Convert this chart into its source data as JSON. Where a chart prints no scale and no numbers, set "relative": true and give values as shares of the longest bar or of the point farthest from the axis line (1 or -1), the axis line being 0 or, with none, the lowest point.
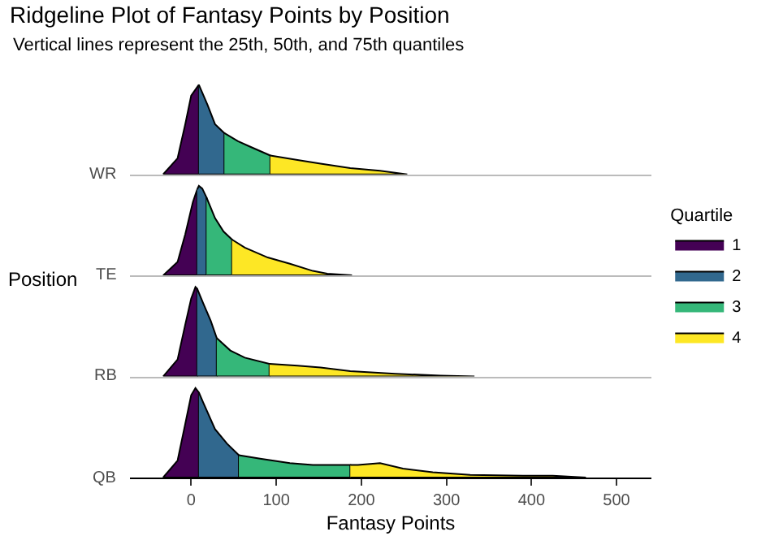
{
  "chart_data": [
    {
      "type": "area",
      "relative": true,
      "title": "Ridgeline Plot of Fantasy Points by Position",
      "subtitle": "Vertical lines represent the 25th, 50th, and 75th quantiles",
      "ylabel": "WR",
      "legend_title": "Quartile",
      "legend": "right",
      "annotations": [
        "Position"
      ],
      "xlim": [
        -72,
        541
      ],
      "tick_labels": false,
      "series": [
        {
          "name": "1",
          "color": "#440154",
          "x": [
            -33,
            -16,
            -7,
            0,
            9
          ],
          "values": [
            0,
            0.18,
            0.56,
            0.88,
            1
          ]
        },
        {
          "name": "2",
          "color": "#31688e",
          "x": [
            9,
            19,
            28,
            39
          ],
          "values": [
            1,
            0.78,
            0.56,
            0.46
          ]
        },
        {
          "name": "3",
          "color": "#35b779",
          "x": [
            39,
            55,
            69,
            93
          ],
          "values": [
            0.46,
            0.37,
            0.31,
            0.21
          ]
        },
        {
          "name": "4",
          "color": "#fde725",
          "x": [
            93,
            125,
            152,
            187,
            222,
            254
          ],
          "values": [
            0.21,
            0.16,
            0.12,
            0.07,
            0.04,
            0
          ]
        }
      ]
    },
    {
      "type": "area",
      "relative": true,
      "ylabel": "TE",
      "xlim": [
        -72,
        541
      ],
      "tick_labels": false,
      "series": [
        {
          "color": "#440154",
          "x": [
            -33,
            -16,
            -7,
            2,
            7
          ],
          "values": [
            0,
            0.15,
            0.46,
            0.82,
            0.96
          ]
        },
        {
          "color": "#31688e",
          "x": [
            7,
            9,
            13,
            18
          ],
          "values": [
            0.96,
            1,
            0.97,
            0.87
          ]
        },
        {
          "color": "#35b779",
          "x": [
            18,
            28,
            38,
            48
          ],
          "values": [
            0.87,
            0.64,
            0.49,
            0.4
          ]
        },
        {
          "color": "#fde725",
          "x": [
            48,
            63,
            90,
            116,
            143,
            160,
            189
          ],
          "values": [
            0.4,
            0.31,
            0.2,
            0.13,
            0.05,
            0.02,
            0
          ]
        }
      ]
    },
    {
      "type": "area",
      "relative": true,
      "ylabel": "RB",
      "xlim": [
        -72,
        541
      ],
      "tick_labels": false,
      "series": [
        {
          "color": "#440154",
          "x": [
            -33,
            -16,
            -7,
            0,
            5,
            7
          ],
          "values": [
            0,
            0.19,
            0.58,
            0.87,
            1,
            0.98
          ]
        },
        {
          "color": "#31688e",
          "x": [
            7,
            14,
            23,
            30
          ],
          "values": [
            0.98,
            0.82,
            0.62,
            0.43
          ]
        },
        {
          "color": "#35b779",
          "x": [
            30,
            46,
            63,
            92
          ],
          "values": [
            0.43,
            0.29,
            0.21,
            0.14
          ]
        },
        {
          "color": "#fde725",
          "x": [
            92,
            125,
            152,
            187,
            240,
            293,
            333
          ],
          "values": [
            0.14,
            0.12,
            0.1,
            0.06,
            0.03,
            0.01,
            0
          ]
        }
      ]
    },
    {
      "type": "area",
      "relative": true,
      "ylabel": "QB",
      "xlabel": "Fantasy Points",
      "xlim": [
        -72,
        541
      ],
      "xticks": [
        0,
        100,
        200,
        300,
        400,
        500
      ],
      "tick_labels": "x",
      "series": [
        {
          "color": "#440154",
          "x": [
            -33,
            -16,
            -7,
            0,
            5,
            9
          ],
          "values": [
            0,
            0.19,
            0.6,
            0.92,
            1,
            0.95
          ]
        },
        {
          "color": "#31688e",
          "x": [
            9,
            14,
            28,
            42,
            56
          ],
          "values": [
            0.95,
            0.84,
            0.54,
            0.38,
            0.25
          ]
        },
        {
          "color": "#35b779",
          "x": [
            56,
            81,
            116,
            143,
            169,
            187
          ],
          "values": [
            0.25,
            0.21,
            0.16,
            0.14,
            0.14,
            0.14
          ]
        },
        {
          "color": "#fde725",
          "x": [
            187,
            196,
            222,
            249,
            284,
            328,
            390,
            425,
            464
          ],
          "values": [
            0.14,
            0.14,
            0.16,
            0.1,
            0.06,
            0.03,
            0.02,
            0.02,
            0
          ]
        }
      ]
    }
  ]
}
